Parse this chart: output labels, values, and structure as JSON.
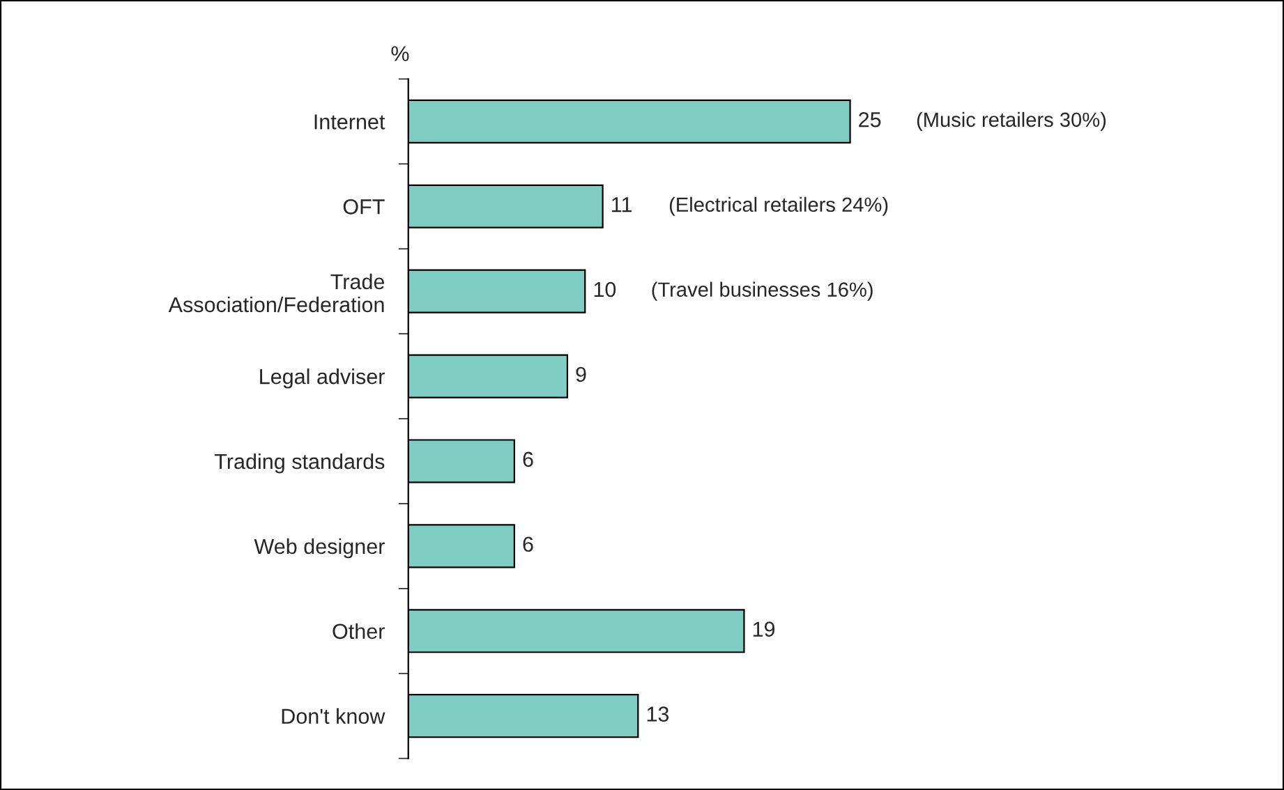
{
  "chart_data": {
    "type": "bar",
    "orientation": "horizontal",
    "xlabel": "%",
    "categories": [
      "Internet",
      "OFT",
      "Trade\nAssociation/Federation",
      "Legal adviser",
      "Trading standards",
      "Web designer",
      "Other",
      "Don't know"
    ],
    "values": [
      25,
      11,
      10,
      9,
      6,
      6,
      19,
      13
    ],
    "color": "#7fcdc2",
    "data_labels": true,
    "grid": false,
    "legend": false,
    "annotations": [
      "(Music retailers 30%)",
      "(Electrical retailers 24%)",
      "(Travel businesses 16%)"
    ]
  }
}
